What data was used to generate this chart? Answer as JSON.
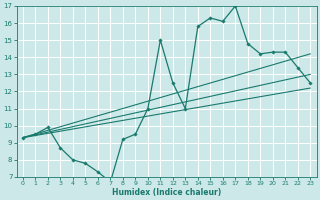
{
  "xlabel": "Humidex (Indice chaleur)",
  "bg_color": "#cce8e8",
  "grid_color": "#ffffff",
  "line_color": "#1a7a6e",
  "xlim": [
    -0.5,
    23.5
  ],
  "ylim": [
    7,
    17
  ],
  "xticks": [
    0,
    1,
    2,
    3,
    4,
    5,
    6,
    7,
    8,
    9,
    10,
    11,
    12,
    13,
    14,
    15,
    16,
    17,
    18,
    19,
    20,
    21,
    22,
    23
  ],
  "yticks": [
    7,
    8,
    9,
    10,
    11,
    12,
    13,
    14,
    15,
    16,
    17
  ],
  "curve_x": [
    0,
    1,
    2,
    3,
    4,
    5,
    6,
    7,
    8,
    9,
    10,
    11,
    12,
    13,
    14,
    15,
    16,
    17,
    18,
    19,
    20,
    21,
    22,
    23
  ],
  "curve_y": [
    9.3,
    9.5,
    9.9,
    8.7,
    8.0,
    7.8,
    7.3,
    6.7,
    9.2,
    9.5,
    11.0,
    15.0,
    12.5,
    11.0,
    15.8,
    16.3,
    16.1,
    17.0,
    14.8,
    14.2,
    14.3,
    14.3,
    13.4,
    12.5
  ],
  "line1_x": [
    0,
    23
  ],
  "line1_y": [
    9.3,
    14.2
  ],
  "line2_x": [
    0,
    23
  ],
  "line2_y": [
    9.3,
    13.0
  ],
  "line3_x": [
    0,
    23
  ],
  "line3_y": [
    9.3,
    12.2
  ]
}
